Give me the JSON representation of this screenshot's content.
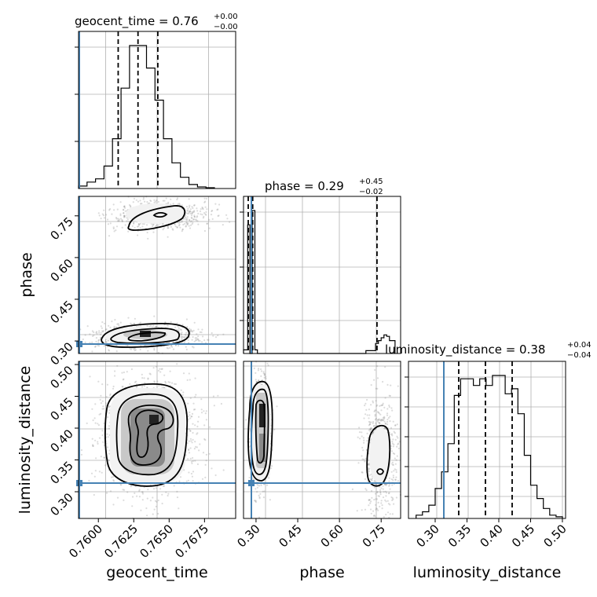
{
  "chart_data": {
    "type": "corner",
    "parameters": [
      "geocent_time",
      "phase",
      "luminosity_distance"
    ],
    "titles": {
      "geocent_time": {
        "prefix": "geocent_time = 0.76",
        "plus": "+0.00",
        "minus": "−0.00"
      },
      "phase": {
        "prefix": "phase = 0.29",
        "plus": "+0.45",
        "minus": "−0.02"
      },
      "luminosity_distance": {
        "prefix": "luminosity_distance = 0.38",
        "plus": "+0.04",
        "minus": "−0.04"
      }
    },
    "ranges": {
      "geocent_time": [
        0.7586,
        0.7697
      ],
      "phase": [
        0.255,
        0.82
      ],
      "luminosity_distance": [
        0.258,
        0.505
      ]
    },
    "ticks": {
      "geocent_time": {
        "values": [
          0.76,
          0.7625,
          0.765,
          0.7675
        ],
        "labels": [
          "0.7600",
          "0.7625",
          "0.7650",
          "0.7675"
        ]
      },
      "phase": {
        "values": [
          0.3,
          0.45,
          0.6,
          0.75
        ],
        "labels": [
          "0.30",
          "0.45",
          "0.60",
          "0.75"
        ]
      },
      "luminosity_distance": {
        "values": [
          0.3,
          0.35,
          0.4,
          0.45,
          0.5
        ],
        "labels": [
          "0.30",
          "0.35",
          "0.40",
          "0.45",
          "0.50"
        ]
      }
    },
    "truths": {
      "geocent_time": 0.7586,
      "phase": 0.262,
      "luminosity_distance": 0.315
    },
    "quantiles": {
      "geocent_time": [
        0.7614,
        0.7628,
        0.7642
      ],
      "phase": [
        0.272,
        0.288,
        0.735
      ],
      "luminosity_distance": [
        0.337,
        0.379,
        0.421
      ]
    },
    "histograms": {
      "geocent_time": {
        "edges": [
          0.7586,
          0.7592,
          0.7598,
          0.7604,
          0.761,
          0.7616,
          0.7622,
          0.7628,
          0.7634,
          0.764,
          0.7646,
          0.7652,
          0.7658,
          0.7664,
          0.767,
          0.7676,
          0.7682
        ],
        "counts": [
          3,
          8,
          12,
          28,
          62,
          125,
          178,
          178,
          150,
          110,
          62,
          32,
          14,
          5,
          2,
          1
        ]
      },
      "phase": {
        "edges": [
          0.255,
          0.27,
          0.278,
          0.286,
          0.296,
          0.305,
          0.695,
          0.73,
          0.74,
          0.75,
          0.76,
          0.77,
          0.78,
          0.8
        ],
        "counts": [
          5,
          180,
          0,
          200,
          5,
          0,
          4,
          14,
          18,
          22,
          26,
          24,
          18
        ]
      },
      "luminosity_distance": {
        "edges": [
          0.27,
          0.28,
          0.29,
          0.3,
          0.31,
          0.32,
          0.33,
          0.34,
          0.35,
          0.36,
          0.37,
          0.38,
          0.39,
          0.4,
          0.41,
          0.42,
          0.43,
          0.44,
          0.45,
          0.46,
          0.47,
          0.48,
          0.49,
          0.5
        ],
        "counts": [
          2,
          4,
          8,
          18,
          28,
          45,
          74,
          84,
          84,
          80,
          84,
          80,
          86,
          86,
          75,
          78,
          63,
          38,
          20,
          12,
          6,
          2,
          1
        ]
      }
    }
  }
}
